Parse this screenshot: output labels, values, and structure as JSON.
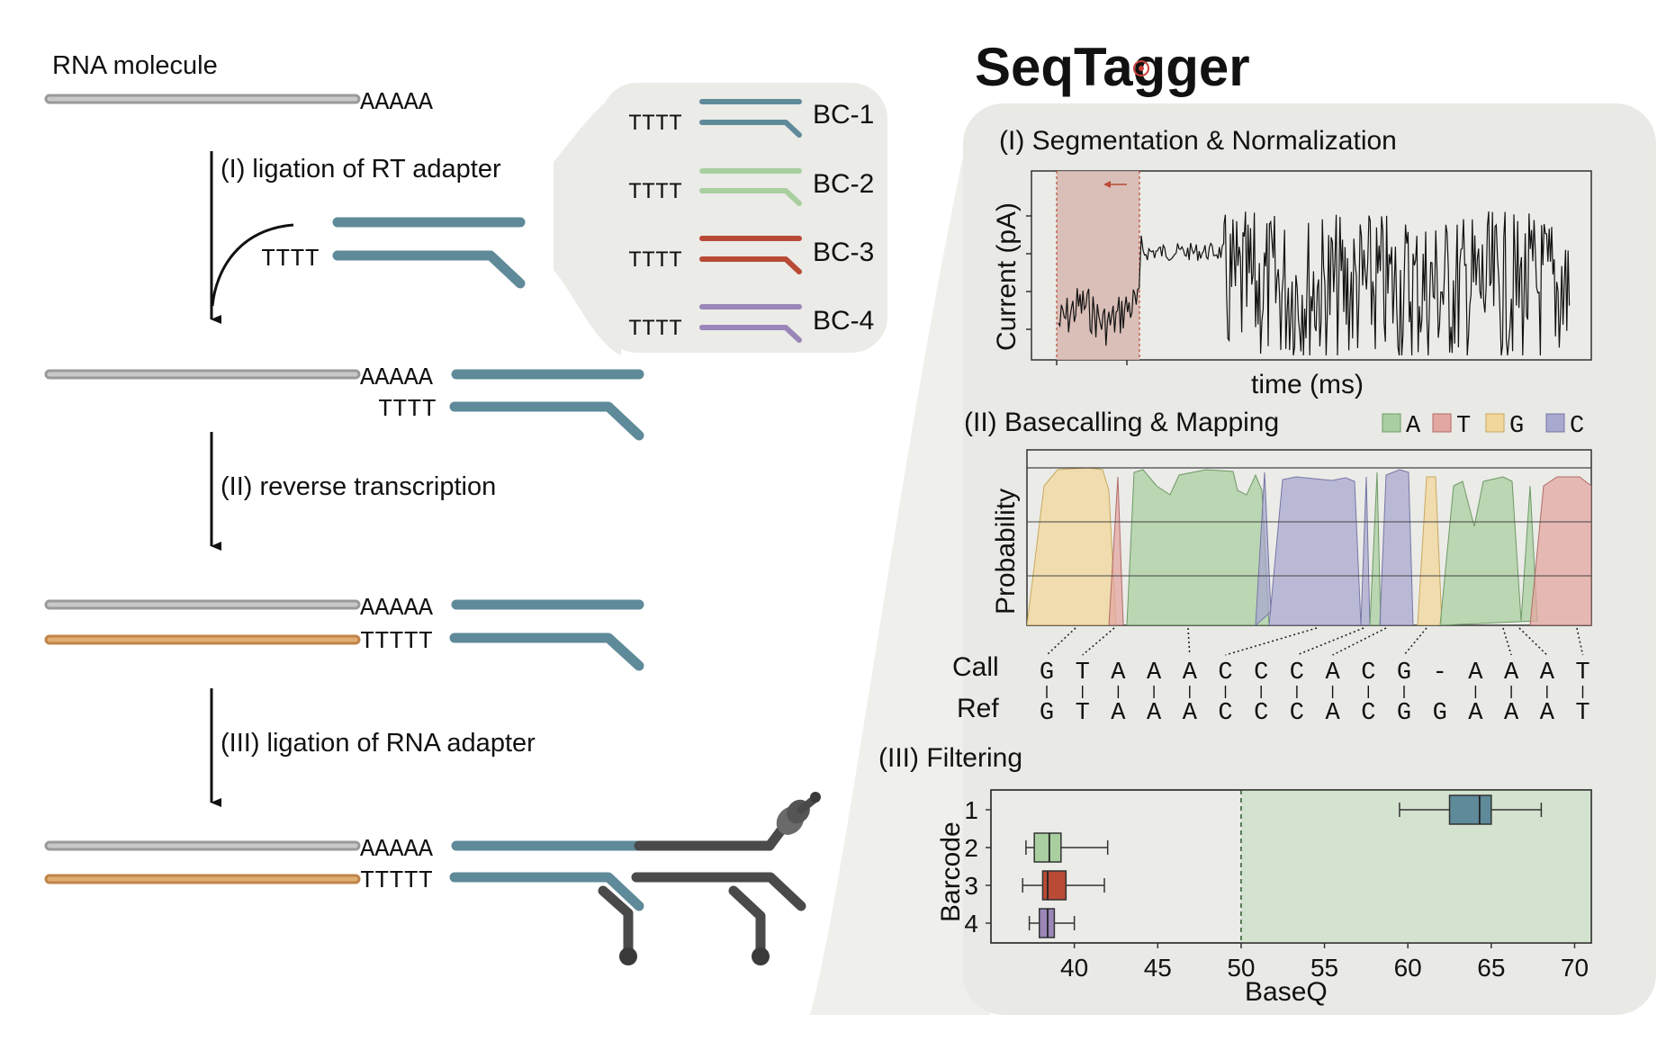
{
  "left": {
    "rna_label": "RNA molecule",
    "polyA": "AAAAA",
    "polyT4": "TTTT",
    "polyT5": "TTTTT",
    "step1": "(I) ligation of RT adapter",
    "step2": "(II) reverse transcription",
    "step3": "(III) ligation of RNA adapter",
    "barcodes": [
      {
        "label": "BC-1",
        "prefix": "TTTT",
        "color": "#5e8a99"
      },
      {
        "label": "BC-2",
        "prefix": "TTTT",
        "color": "#a9cfa0"
      },
      {
        "label": "BC-3",
        "prefix": "TTTT",
        "color": "#b94a36"
      },
      {
        "label": "BC-4",
        "prefix": "TTTT",
        "color": "#9a86b8"
      }
    ],
    "colors": {
      "rna": "#b5b5b5",
      "cdna": "#d29a5e",
      "adapter": "#5e8a99",
      "motor": "#4a4a4a"
    }
  },
  "right": {
    "logo": "SeqTagger",
    "panel1": {
      "title": "(I) Segmentation & Normalization",
      "ylabel": "Current (pA)",
      "xlabel": "time (ms)"
    },
    "panel2": {
      "title": "(II) Basecalling & Mapping",
      "ylabel": "Probability",
      "legend": [
        {
          "base": "A",
          "color": "#a9cfa0"
        },
        {
          "base": "T",
          "color": "#e3a7a2"
        },
        {
          "base": "G",
          "color": "#f1d79b"
        },
        {
          "base": "C",
          "color": "#a9a8cf"
        }
      ],
      "call_label": "Call",
      "ref_label": "Ref",
      "call": [
        "G",
        "T",
        "A",
        "A",
        "A",
        "C",
        "C",
        "C",
        "A",
        "C",
        "G",
        "-",
        "A",
        "A",
        "A",
        "T"
      ],
      "ref": [
        "G",
        "T",
        "A",
        "A",
        "A",
        "C",
        "C",
        "C",
        "A",
        "C",
        "G",
        "G",
        "A",
        "A",
        "A",
        "T"
      ]
    },
    "panel3": {
      "title": "(III) Filtering",
      "ylabel": "Barcode",
      "xlabel": "BaseQ"
    }
  },
  "chart_data": {
    "type": "box",
    "title": "(III) Filtering",
    "xlabel": "BaseQ",
    "ylabel": "Barcode",
    "xlim": [
      35,
      71
    ],
    "xticks": [
      40,
      45,
      50,
      55,
      60,
      65,
      70
    ],
    "threshold": 50,
    "categories": [
      "1",
      "2",
      "3",
      "4"
    ],
    "boxes": [
      {
        "category": "1",
        "min": 59.5,
        "q1": 62.5,
        "median": 64.3,
        "q3": 65,
        "max": 68,
        "color": "#5e8a99"
      },
      {
        "category": "2",
        "min": 37.1,
        "q1": 37.6,
        "median": 38.5,
        "q3": 39.2,
        "max": 42.0,
        "color": "#a9cfa0"
      },
      {
        "category": "3",
        "min": 36.9,
        "q1": 38.1,
        "median": 38.4,
        "q3": 39.5,
        "max": 41.8,
        "color": "#b94a36"
      },
      {
        "category": "4",
        "min": 37.3,
        "q1": 37.9,
        "median": 38.4,
        "q3": 38.8,
        "max": 40.0,
        "color": "#9a86b8"
      }
    ]
  }
}
